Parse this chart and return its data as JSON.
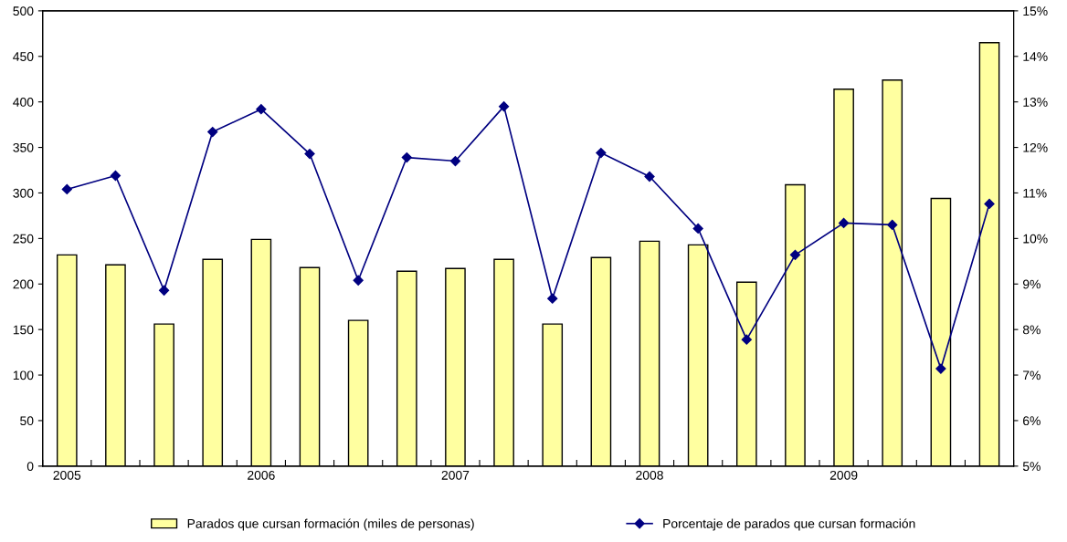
{
  "chart_data": {
    "type": "bar",
    "categories": [
      "2005",
      null,
      null,
      null,
      "2006",
      null,
      null,
      null,
      "2007",
      null,
      null,
      null,
      "2008",
      null,
      null,
      null,
      "2009",
      null,
      null,
      null
    ],
    "series": [
      {
        "name": "Parados que cursan formación (miles de personas)",
        "color": "#ffffa0",
        "values": [
          232,
          221,
          156,
          227,
          249,
          218,
          160,
          214,
          217,
          227,
          156,
          229,
          247,
          243,
          202,
          309,
          414,
          424,
          294,
          465
        ]
      },
      {
        "name": "Porcentaje de parados que cursan formación",
        "type": "line",
        "axis": "y2",
        "color": "#000080",
        "marker": "diamond",
        "values": [
          11.08,
          11.38,
          8.86,
          12.34,
          12.84,
          11.86,
          9.08,
          11.78,
          11.7,
          12.9,
          8.68,
          11.88,
          11.36,
          10.22,
          7.78,
          9.64,
          10.34,
          10.3,
          7.14,
          10.76
        ]
      }
    ],
    "ylim": [
      0,
      500
    ],
    "yticks": [
      0,
      50,
      100,
      150,
      200,
      250,
      300,
      350,
      400,
      450,
      500
    ],
    "y2lim": [
      5,
      15
    ],
    "y2ticks": [
      {
        "value": 5,
        "label": "5%"
      },
      {
        "value": 6,
        "label": "6%"
      },
      {
        "value": 7,
        "label": "7%"
      },
      {
        "value": 8,
        "label": "8%"
      },
      {
        "value": 9,
        "label": "9%"
      },
      {
        "value": 10,
        "label": "10%"
      },
      {
        "value": 11,
        "label": "11%"
      },
      {
        "value": 12,
        "label": "12%"
      },
      {
        "value": 13,
        "label": "13%"
      },
      {
        "value": 14,
        "label": "14%"
      },
      {
        "value": 15,
        "label": "15%"
      }
    ],
    "grid": false,
    "legend": "bottom"
  }
}
